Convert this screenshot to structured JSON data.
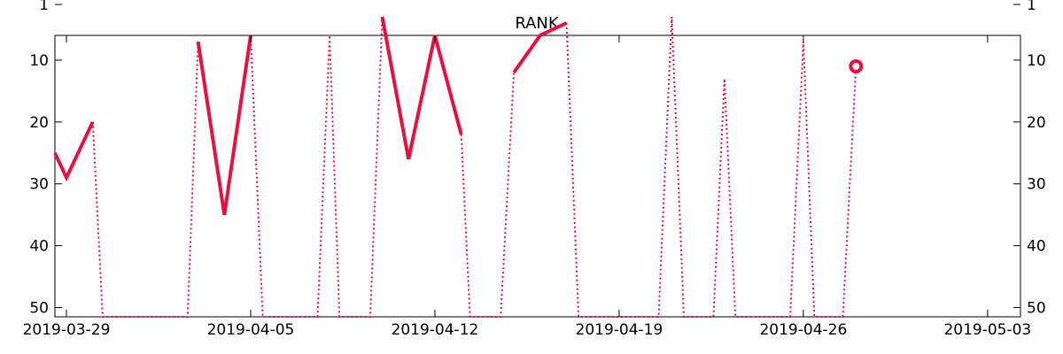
{
  "chart_data": {
    "type": "line",
    "title": "RANK",
    "xlabel": "",
    "ylabel": "",
    "y_inverted": true,
    "ylim": [
      51.5,
      6
    ],
    "xlim": [
      "2019-03-28 13:30",
      "2019-05-04 06:00"
    ],
    "grid": false,
    "y_ticks": [
      {
        "value": 1,
        "label": "1"
      },
      {
        "value": 10,
        "label": "10"
      },
      {
        "value": 20,
        "label": "20"
      },
      {
        "value": 30,
        "label": "30"
      },
      {
        "value": 40,
        "label": "40"
      },
      {
        "value": 50,
        "label": "50"
      }
    ],
    "x_ticks": [
      {
        "value": "2019-03-29",
        "label": "2019-03-29"
      },
      {
        "value": "2019-04-05",
        "label": "2019-04-05"
      },
      {
        "value": "2019-04-12",
        "label": "2019-04-12"
      },
      {
        "value": "2019-04-19",
        "label": "2019-04-19"
      },
      {
        "value": "2019-04-26",
        "label": "2019-04-26"
      },
      {
        "value": "2019-05-03",
        "label": "2019-05-03"
      }
    ],
    "colors": {
      "series": "#e8103f"
    },
    "series": [
      {
        "name": "",
        "points": [
          {
            "x": "2019-03-28 13:30",
            "y": 25
          },
          {
            "x": "2019-03-29",
            "y": 29
          },
          {
            "x": "2019-03-30",
            "y": 20
          },
          {
            "x": "2019-03-30 09:00",
            "y": 51.5
          },
          {
            "x": "2019-04-02 14:30",
            "y": 51.5
          },
          {
            "x": "2019-04-03",
            "y": 7
          },
          {
            "x": "2019-04-04",
            "y": 35
          },
          {
            "x": "2019-04-05",
            "y": 6
          },
          {
            "x": "2019-04-05 11:00",
            "y": 51.5
          },
          {
            "x": "2019-04-07 13:00",
            "y": 51.5
          },
          {
            "x": "2019-04-08",
            "y": 6
          },
          {
            "x": "2019-04-08 09:00",
            "y": 51.5
          },
          {
            "x": "2019-04-09 13:00",
            "y": 51.5
          },
          {
            "x": "2019-04-10",
            "y": 3
          },
          {
            "x": "2019-04-11",
            "y": 26
          },
          {
            "x": "2019-04-12",
            "y": 6
          },
          {
            "x": "2019-04-13",
            "y": 22
          },
          {
            "x": "2019-04-13 08:00",
            "y": 51.5
          },
          {
            "x": "2019-04-14 12:00",
            "y": 51.5
          },
          {
            "x": "2019-04-15",
            "y": 12
          },
          {
            "x": "2019-04-16",
            "y": 6
          },
          {
            "x": "2019-04-17",
            "y": 4
          },
          {
            "x": "2019-04-17 11:00",
            "y": 51.5
          },
          {
            "x": "2019-04-20 12:00",
            "y": 51.5
          },
          {
            "x": "2019-04-21",
            "y": 3
          },
          {
            "x": "2019-04-21 11:00",
            "y": 51.5
          },
          {
            "x": "2019-04-22 14:00",
            "y": 51.5
          },
          {
            "x": "2019-04-23",
            "y": 13
          },
          {
            "x": "2019-04-23 10:00",
            "y": 51.5
          },
          {
            "x": "2019-04-25 12:00",
            "y": 51.5
          },
          {
            "x": "2019-04-26",
            "y": 7
          },
          {
            "x": "2019-04-26 10:00",
            "y": 51.5
          },
          {
            "x": "2019-04-27 12:00",
            "y": 51.5
          },
          {
            "x": "2019-04-28",
            "y": 11
          }
        ],
        "segments": [
          {
            "style": "solid",
            "from": 0,
            "to": 2
          },
          {
            "style": "dotted",
            "from": 2,
            "to": 5
          },
          {
            "style": "solid",
            "from": 5,
            "to": 7
          },
          {
            "style": "dotted",
            "from": 7,
            "to": 13
          },
          {
            "style": "solid",
            "from": 13,
            "to": 16
          },
          {
            "style": "dotted",
            "from": 16,
            "to": 19
          },
          {
            "style": "solid",
            "from": 19,
            "to": 21
          },
          {
            "style": "dotted",
            "from": 21,
            "to": 33
          }
        ],
        "markers": [
          {
            "x": "2019-04-28",
            "y": 11,
            "shape": "open-circle"
          }
        ]
      }
    ]
  }
}
